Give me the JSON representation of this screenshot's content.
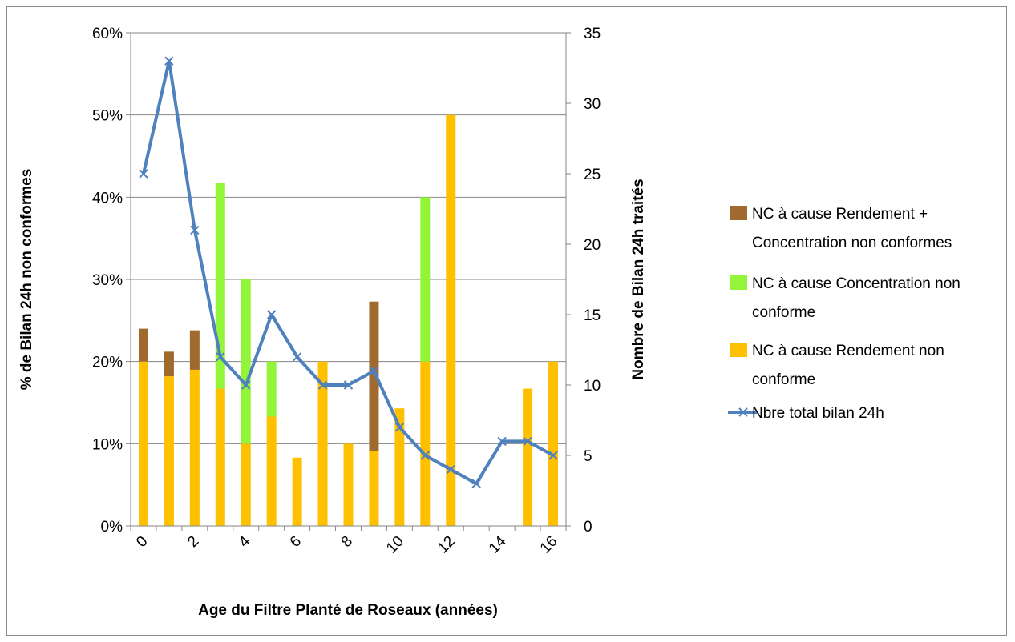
{
  "chart_data": {
    "type": "bar",
    "stacked": true,
    "x": [
      0,
      1,
      2,
      3,
      4,
      5,
      6,
      7,
      8,
      9,
      10,
      11,
      12,
      13,
      14,
      15,
      16
    ],
    "x_tick_labels": [
      "0",
      "2",
      "4",
      "6",
      "8",
      "10",
      "12",
      "14",
      "16"
    ],
    "x_tick_values": [
      0,
      2,
      4,
      6,
      8,
      10,
      12,
      14,
      16
    ],
    "xlabel": "Age du Filtre Planté de Roseaux (années)",
    "ylabel": "% de Bilan 24h non conformes",
    "y2label": "Nombre de Bilan 24h traités",
    "ylim": [
      0,
      0.6
    ],
    "y_tick_labels": [
      "0%",
      "10%",
      "20%",
      "30%",
      "40%",
      "50%",
      "60%"
    ],
    "y2lim": [
      0,
      35
    ],
    "y2_tick_labels": [
      "0",
      "5",
      "10",
      "15",
      "20",
      "25",
      "30",
      "35"
    ],
    "grid": true,
    "legend_position": "right",
    "series": [
      {
        "name": "NC à cause Rendement non conforme",
        "kind": "bar",
        "axis": "left",
        "color": "#FFC000",
        "values": [
          0.2,
          0.182,
          0.19,
          0.167,
          0.1,
          0.133,
          0.083,
          0.2,
          0.1,
          0.091,
          0.143,
          0.2,
          0.5,
          0,
          0,
          0.167,
          0.2
        ]
      },
      {
        "name": "NC à cause Concentration non conforme",
        "kind": "bar",
        "axis": "left",
        "color": "#92F53A",
        "values": [
          0,
          0,
          0,
          0.25,
          0.2,
          0.067,
          0,
          0,
          0,
          0,
          0,
          0.2,
          0,
          0,
          0,
          0,
          0
        ]
      },
      {
        "name": "NC à cause Rendement + Concentration non conformes",
        "kind": "bar",
        "axis": "left",
        "color": "#A0692E",
        "values": [
          0.04,
          0.03,
          0.048,
          0,
          0,
          0,
          0,
          0,
          0,
          0.182,
          0,
          0,
          0,
          0,
          0,
          0,
          0
        ]
      },
      {
        "name": "Nbre total bilan 24h",
        "kind": "line",
        "axis": "right",
        "color": "#4F81BD",
        "values": [
          25,
          33,
          21,
          12,
          10,
          15,
          12,
          10,
          10,
          11,
          7,
          5,
          4,
          3,
          6,
          6,
          5
        ]
      }
    ],
    "legend": [
      {
        "label_lines": [
          "NC à cause Rendement +",
          "Concentration non conformes"
        ],
        "color": "#A0692E",
        "kind": "bar"
      },
      {
        "label_lines": [
          "NC à cause Concentration non",
          "conforme"
        ],
        "color": "#92F53A",
        "kind": "bar"
      },
      {
        "label_lines": [
          "NC à cause Rendement non",
          "conforme"
        ],
        "color": "#FFC000",
        "kind": "bar"
      },
      {
        "label_lines": [
          "Nbre total bilan 24h"
        ],
        "color": "#4F81BD",
        "kind": "line"
      }
    ]
  }
}
